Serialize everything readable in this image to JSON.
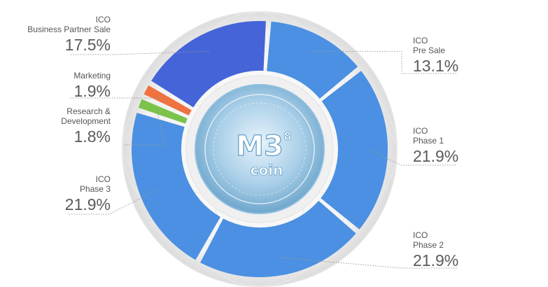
{
  "colors": {
    "ico_blue": "#4b90e2",
    "business_partner": "#4464d8",
    "marketing": "#ef7240",
    "research": "#7bc34a",
    "ring": "#e6e6e6",
    "emblem": "#7fb5d8"
  },
  "chart_data": {
    "type": "pie",
    "variant": "donut",
    "title": "",
    "slices": [
      {
        "label_l1": "ICO",
        "label_l2": "Pre Sale",
        "value": 13.1,
        "value_text": "13.1%",
        "color": "#4b90e2"
      },
      {
        "label_l1": "ICO",
        "label_l2": "Phase 1",
        "value": 21.9,
        "value_text": "21.9%",
        "color": "#4b90e2"
      },
      {
        "label_l1": "ICO",
        "label_l2": "Phase 2",
        "value": 21.9,
        "value_text": "21.9%",
        "color": "#4b90e2"
      },
      {
        "label_l1": "ICO",
        "label_l2": "Phase 3",
        "value": 21.9,
        "value_text": "21.9%",
        "color": "#4b90e2"
      },
      {
        "label_l1": "Research &",
        "label_l2": "Development",
        "value": 1.8,
        "value_text": "1.8%",
        "color": "#7bc34a"
      },
      {
        "label_l1": "Marketing",
        "label_l2": "",
        "value": 1.9,
        "value_text": "1.9%",
        "color": "#ef7240"
      },
      {
        "label_l1": "ICO",
        "label_l2": "Business Partner Sale",
        "value": 17.5,
        "value_text": "17.5%",
        "color": "#4464d8"
      }
    ]
  },
  "emblem": {
    "logo_text": "M3",
    "superscript": "8",
    "coin_text": "COIN"
  }
}
